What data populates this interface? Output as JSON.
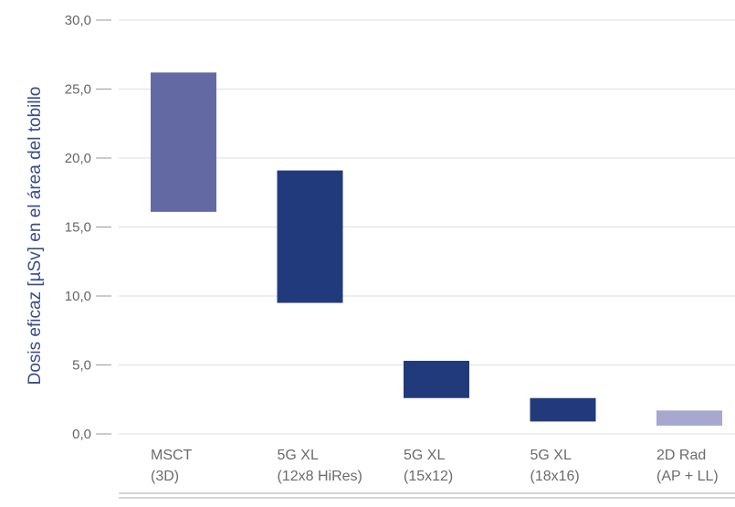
{
  "chart_data": {
    "type": "bar",
    "subtype": "floating-range",
    "ylabel": "Dosis eficaz [µSv] en el área del tobillo",
    "ylim": [
      0,
      30
    ],
    "yticks": [
      "30,0",
      "25,0",
      "20,0",
      "15,0",
      "10,0",
      "5,0",
      "0,0"
    ],
    "ytick_values": [
      30,
      25,
      20,
      15,
      10,
      5,
      0
    ],
    "grid": true,
    "categories": [
      {
        "line1": "MSCT",
        "line2": "(3D)",
        "low": 16.1,
        "high": 26.2,
        "color": "#636aa3"
      },
      {
        "line1": "5G XL",
        "line2": "(12x8 HiRes)",
        "low": 9.5,
        "high": 19.1,
        "color": "#213a7c"
      },
      {
        "line1": "5G XL",
        "line2": "(15x12)",
        "low": 2.6,
        "high": 5.3,
        "color": "#213a7c"
      },
      {
        "line1": "5G XL",
        "line2": "(18x16)",
        "low": 0.9,
        "high": 2.6,
        "color": "#213a7c"
      },
      {
        "line1": "2D Rad",
        "line2": "(AP + LL)",
        "low": 0.6,
        "high": 1.7,
        "color": "#a6a8cf"
      }
    ]
  }
}
